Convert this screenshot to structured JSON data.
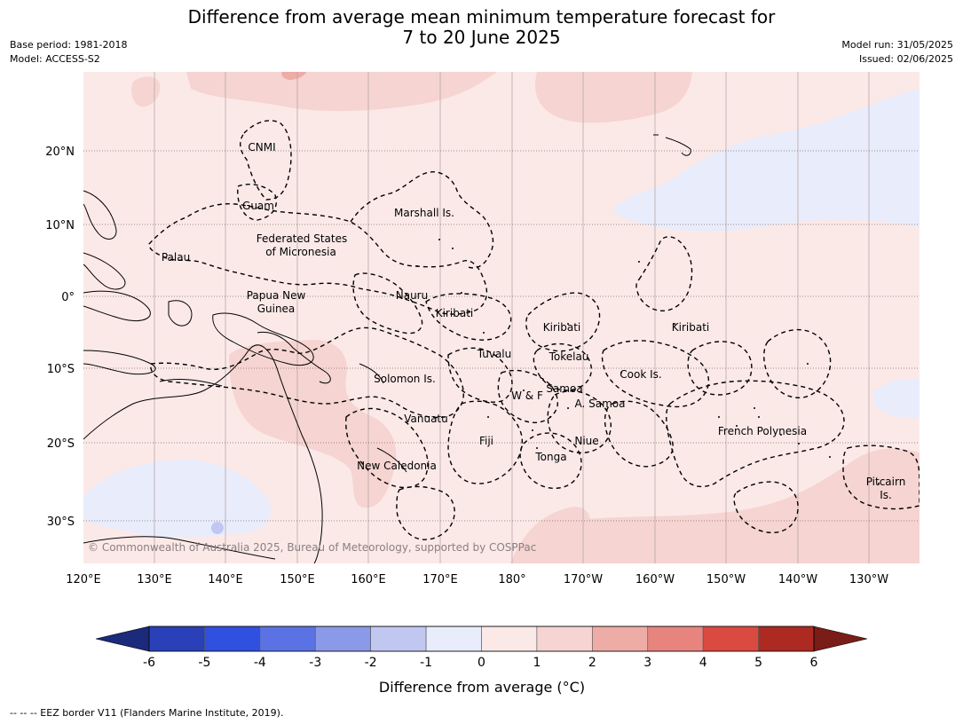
{
  "header": {
    "title_line1": "Difference from average mean minimum temperature forecast for",
    "title_line2": "7 to 20 June 2025",
    "base_period": "Base period: 1981-2018",
    "model": "Model: ACCESS-S2",
    "model_run": "Model run: 31/05/2025",
    "issued": "Issued: 02/06/2025"
  },
  "map": {
    "lat_labels": [
      "20°N",
      "10°N",
      "0°",
      "10°S",
      "20°S",
      "30°S"
    ],
    "lon_labels": [
      "120°E",
      "130°E",
      "140°E",
      "150°E",
      "160°E",
      "170°E",
      "180°",
      "170°W",
      "160°W",
      "150°W",
      "140°W",
      "130°W"
    ],
    "regions": [
      "CNMI",
      "Guam",
      "Marshall Is.",
      "Federated States",
      "of Micronesia",
      "Palau",
      "Papua New",
      "Guinea",
      "Nauru",
      "Kiribati",
      "Kiribati",
      "Kiribati",
      "Tuvalu",
      "Tokelau",
      "Solomon Is.",
      "Cook Is.",
      "W & F",
      "Samoa",
      "A. Samoa",
      "Vanuatu",
      "Fiji",
      "Niue",
      "Tonga",
      "French Polynesia",
      "New Caledonia",
      "Pitcairn",
      "Is."
    ],
    "credit": "© Commonwealth of Australia 2025, Bureau of Meteorology, supported by COSPPac"
  },
  "colorbar": {
    "label": "Difference from average (°C)",
    "ticks": [
      "-6",
      "-5",
      "-4",
      "-3",
      "-2",
      "-1",
      "0",
      "1",
      "2",
      "3",
      "4",
      "5",
      "6"
    ],
    "colors": {
      "under": "#1b2a7a",
      "bins": [
        "#2a40b8",
        "#3050e0",
        "#5a72e4",
        "#8a9ae8",
        "#c0c8f2",
        "#e8ecfb",
        "#fbe9e8",
        "#f5d4d1",
        "#eeaca6",
        "#e7847e",
        "#db4a40",
        "#ad2a22"
      ],
      "over": "#7a1c18"
    }
  },
  "footnote": "--  --  -- EEZ border V11 (Flanders Marine Institute, 2019)."
}
